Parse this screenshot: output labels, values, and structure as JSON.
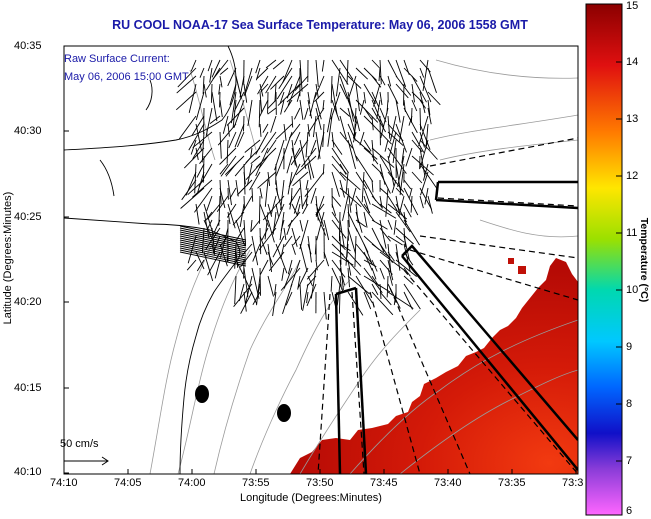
{
  "title": "RU COOL  NOAA-17  Sea Surface Temperature:  May 06, 2006 1558 GMT",
  "current_label": "Raw Surface Current:",
  "current_time": "May 06, 2006 15:00 GMT",
  "scale_label": "50 cm/s",
  "x_axis_label": "Longitude (Degrees:Minutes)",
  "y_axis_label": "Latitude (Degrees:Minutes)",
  "colorbar_label": "Temperature (°C)",
  "x_ticks": [
    "74:10",
    "74:05",
    "74:00",
    "73:55",
    "73:50",
    "73:45",
    "73:40",
    "73:35",
    "73:3"
  ],
  "y_ticks": [
    "40:35",
    "40:30",
    "40:25",
    "40:20",
    "40:15",
    "40:10"
  ],
  "colorbar_ticks": [
    "15",
    "14",
    "13",
    "12",
    "11",
    "10",
    "9",
    "8",
    "7",
    "6"
  ],
  "colors": {
    "land": "#ffffff",
    "coast": "#000000",
    "sst_warm": "#cc1100",
    "title": "#1a1aa8"
  }
}
